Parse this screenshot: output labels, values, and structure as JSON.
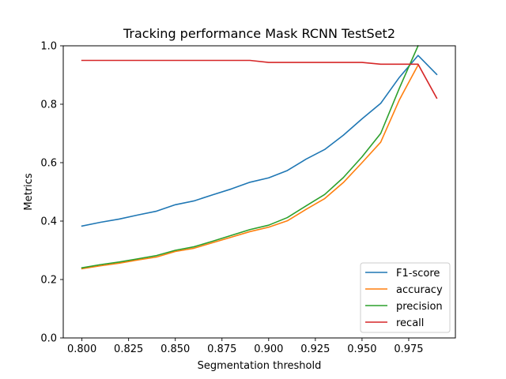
{
  "chart_data": {
    "type": "line",
    "title": "Tracking performance Mask RCNN TestSet2",
    "xlabel": "Segmentation threshold",
    "ylabel": "Metrics",
    "xlim": [
      0.79,
      1.0
    ],
    "ylim": [
      0.0,
      1.0
    ],
    "xticks": [
      0.8,
      0.825,
      0.85,
      0.875,
      0.9,
      0.925,
      0.95,
      0.975
    ],
    "xtick_labels": [
      "0.800",
      "0.825",
      "0.850",
      "0.875",
      "0.900",
      "0.925",
      "0.950",
      "0.975"
    ],
    "yticks": [
      0.0,
      0.2,
      0.4,
      0.6,
      0.8,
      1.0
    ],
    "ytick_labels": [
      "0.0",
      "0.2",
      "0.4",
      "0.6",
      "0.8",
      "1.0"
    ],
    "grid": false,
    "legend_position": "lower-right",
    "x": [
      0.8,
      0.81,
      0.82,
      0.83,
      0.84,
      0.85,
      0.86,
      0.87,
      0.88,
      0.89,
      0.9,
      0.91,
      0.92,
      0.93,
      0.94,
      0.95,
      0.96,
      0.97,
      0.98,
      0.99
    ],
    "series": [
      {
        "name": "F1-score",
        "color": "#1f77b4",
        "values": [
          0.383,
          0.396,
          0.407,
          0.421,
          0.434,
          0.456,
          0.469,
          0.49,
          0.51,
          0.533,
          0.548,
          0.573,
          0.612,
          0.645,
          0.694,
          0.75,
          0.803,
          0.892,
          0.967,
          0.902
        ]
      },
      {
        "name": "accuracy",
        "color": "#ff7f0e",
        "values": [
          0.237,
          0.247,
          0.256,
          0.267,
          0.277,
          0.296,
          0.307,
          0.326,
          0.345,
          0.364,
          0.379,
          0.401,
          0.44,
          0.477,
          0.532,
          0.6,
          0.67,
          0.815,
          0.934,
          null
        ]
      },
      {
        "name": "precision",
        "color": "#2ca02c",
        "values": [
          0.24,
          0.251,
          0.26,
          0.271,
          0.282,
          0.3,
          0.312,
          0.331,
          0.351,
          0.371,
          0.386,
          0.412,
          0.452,
          0.491,
          0.549,
          0.62,
          0.7,
          0.855,
          1.0,
          null
        ]
      },
      {
        "name": "recall",
        "color": "#d62728",
        "values": [
          0.95,
          0.95,
          0.95,
          0.95,
          0.95,
          0.95,
          0.95,
          0.95,
          0.95,
          0.95,
          0.943,
          0.943,
          0.943,
          0.943,
          0.943,
          0.943,
          0.937,
          0.937,
          0.937,
          0.821
        ]
      }
    ]
  }
}
